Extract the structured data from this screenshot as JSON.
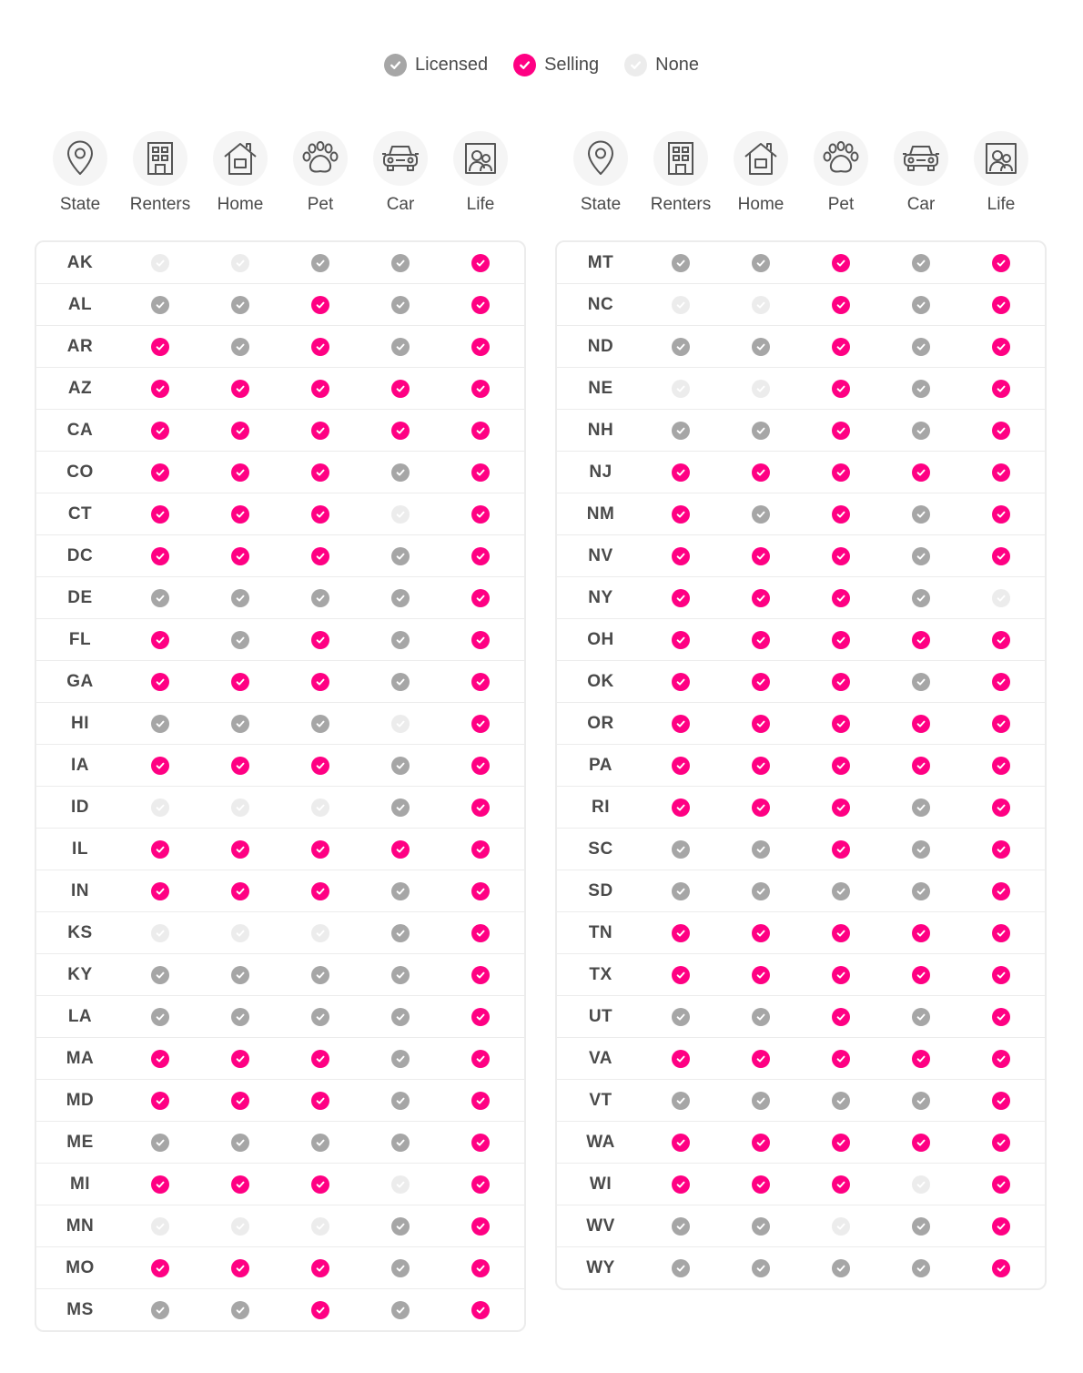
{
  "legend": [
    {
      "key": "L",
      "label": "Licensed"
    },
    {
      "key": "S",
      "label": "Selling"
    },
    {
      "key": "N",
      "label": "None"
    }
  ],
  "colors": {
    "licensed": "#a6a6a6",
    "selling": "#ff0083",
    "none": "#ececec"
  },
  "columns": [
    {
      "label": "State",
      "icon": "location-pin-icon"
    },
    {
      "label": "Renters",
      "icon": "building-icon"
    },
    {
      "label": "Home",
      "icon": "house-icon"
    },
    {
      "label": "Pet",
      "icon": "paw-icon"
    },
    {
      "label": "Car",
      "icon": "car-icon"
    },
    {
      "label": "Life",
      "icon": "family-portrait-icon"
    }
  ],
  "tables": [
    {
      "rows": [
        {
          "state": "AK",
          "status": [
            "N",
            "N",
            "L",
            "L",
            "S"
          ]
        },
        {
          "state": "AL",
          "status": [
            "L",
            "L",
            "S",
            "L",
            "S"
          ]
        },
        {
          "state": "AR",
          "status": [
            "S",
            "L",
            "S",
            "L",
            "S"
          ]
        },
        {
          "state": "AZ",
          "status": [
            "S",
            "S",
            "S",
            "S",
            "S"
          ]
        },
        {
          "state": "CA",
          "status": [
            "S",
            "S",
            "S",
            "S",
            "S"
          ]
        },
        {
          "state": "CO",
          "status": [
            "S",
            "S",
            "S",
            "L",
            "S"
          ]
        },
        {
          "state": "CT",
          "status": [
            "S",
            "S",
            "S",
            "N",
            "S"
          ]
        },
        {
          "state": "DC",
          "status": [
            "S",
            "S",
            "S",
            "L",
            "S"
          ]
        },
        {
          "state": "DE",
          "status": [
            "L",
            "L",
            "L",
            "L",
            "S"
          ]
        },
        {
          "state": "FL",
          "status": [
            "S",
            "L",
            "S",
            "L",
            "S"
          ]
        },
        {
          "state": "GA",
          "status": [
            "S",
            "S",
            "S",
            "L",
            "S"
          ]
        },
        {
          "state": "HI",
          "status": [
            "L",
            "L",
            "L",
            "N",
            "S"
          ]
        },
        {
          "state": "IA",
          "status": [
            "S",
            "S",
            "S",
            "L",
            "S"
          ]
        },
        {
          "state": "ID",
          "status": [
            "N",
            "N",
            "N",
            "L",
            "S"
          ]
        },
        {
          "state": "IL",
          "status": [
            "S",
            "S",
            "S",
            "S",
            "S"
          ]
        },
        {
          "state": "IN",
          "status": [
            "S",
            "S",
            "S",
            "L",
            "S"
          ]
        },
        {
          "state": "KS",
          "status": [
            "N",
            "N",
            "N",
            "L",
            "S"
          ]
        },
        {
          "state": "KY",
          "status": [
            "L",
            "L",
            "L",
            "L",
            "S"
          ]
        },
        {
          "state": "LA",
          "status": [
            "L",
            "L",
            "L",
            "L",
            "S"
          ]
        },
        {
          "state": "MA",
          "status": [
            "S",
            "S",
            "S",
            "L",
            "S"
          ]
        },
        {
          "state": "MD",
          "status": [
            "S",
            "S",
            "S",
            "L",
            "S"
          ]
        },
        {
          "state": "ME",
          "status": [
            "L",
            "L",
            "L",
            "L",
            "S"
          ]
        },
        {
          "state": "MI",
          "status": [
            "S",
            "S",
            "S",
            "N",
            "S"
          ]
        },
        {
          "state": "MN",
          "status": [
            "N",
            "N",
            "N",
            "L",
            "S"
          ]
        },
        {
          "state": "MO",
          "status": [
            "S",
            "S",
            "S",
            "L",
            "S"
          ]
        },
        {
          "state": "MS",
          "status": [
            "L",
            "L",
            "S",
            "L",
            "S"
          ]
        }
      ]
    },
    {
      "rows": [
        {
          "state": "MT",
          "status": [
            "L",
            "L",
            "S",
            "L",
            "S"
          ]
        },
        {
          "state": "NC",
          "status": [
            "N",
            "N",
            "S",
            "L",
            "S"
          ]
        },
        {
          "state": "ND",
          "status": [
            "L",
            "L",
            "S",
            "L",
            "S"
          ]
        },
        {
          "state": "NE",
          "status": [
            "N",
            "N",
            "S",
            "L",
            "S"
          ]
        },
        {
          "state": "NH",
          "status": [
            "L",
            "L",
            "S",
            "L",
            "S"
          ]
        },
        {
          "state": "NJ",
          "status": [
            "S",
            "S",
            "S",
            "S",
            "S"
          ]
        },
        {
          "state": "NM",
          "status": [
            "S",
            "L",
            "S",
            "L",
            "S"
          ]
        },
        {
          "state": "NV",
          "status": [
            "S",
            "S",
            "S",
            "L",
            "S"
          ]
        },
        {
          "state": "NY",
          "status": [
            "S",
            "S",
            "S",
            "L",
            "N"
          ]
        },
        {
          "state": "OH",
          "status": [
            "S",
            "S",
            "S",
            "S",
            "S"
          ]
        },
        {
          "state": "OK",
          "status": [
            "S",
            "S",
            "S",
            "L",
            "S"
          ]
        },
        {
          "state": "OR",
          "status": [
            "S",
            "S",
            "S",
            "S",
            "S"
          ]
        },
        {
          "state": "PA",
          "status": [
            "S",
            "S",
            "S",
            "S",
            "S"
          ]
        },
        {
          "state": "RI",
          "status": [
            "S",
            "S",
            "S",
            "L",
            "S"
          ]
        },
        {
          "state": "SC",
          "status": [
            "L",
            "L",
            "S",
            "L",
            "S"
          ]
        },
        {
          "state": "SD",
          "status": [
            "L",
            "L",
            "L",
            "L",
            "S"
          ]
        },
        {
          "state": "TN",
          "status": [
            "S",
            "S",
            "S",
            "S",
            "S"
          ]
        },
        {
          "state": "TX",
          "status": [
            "S",
            "S",
            "S",
            "S",
            "S"
          ]
        },
        {
          "state": "UT",
          "status": [
            "L",
            "L",
            "S",
            "L",
            "S"
          ]
        },
        {
          "state": "VA",
          "status": [
            "S",
            "S",
            "S",
            "S",
            "S"
          ]
        },
        {
          "state": "VT",
          "status": [
            "L",
            "L",
            "L",
            "L",
            "S"
          ]
        },
        {
          "state": "WA",
          "status": [
            "S",
            "S",
            "S",
            "S",
            "S"
          ]
        },
        {
          "state": "WI",
          "status": [
            "S",
            "S",
            "S",
            "N",
            "S"
          ]
        },
        {
          "state": "WV",
          "status": [
            "L",
            "L",
            "N",
            "L",
            "S"
          ]
        },
        {
          "state": "WY",
          "status": [
            "L",
            "L",
            "L",
            "L",
            "S"
          ]
        }
      ]
    }
  ]
}
